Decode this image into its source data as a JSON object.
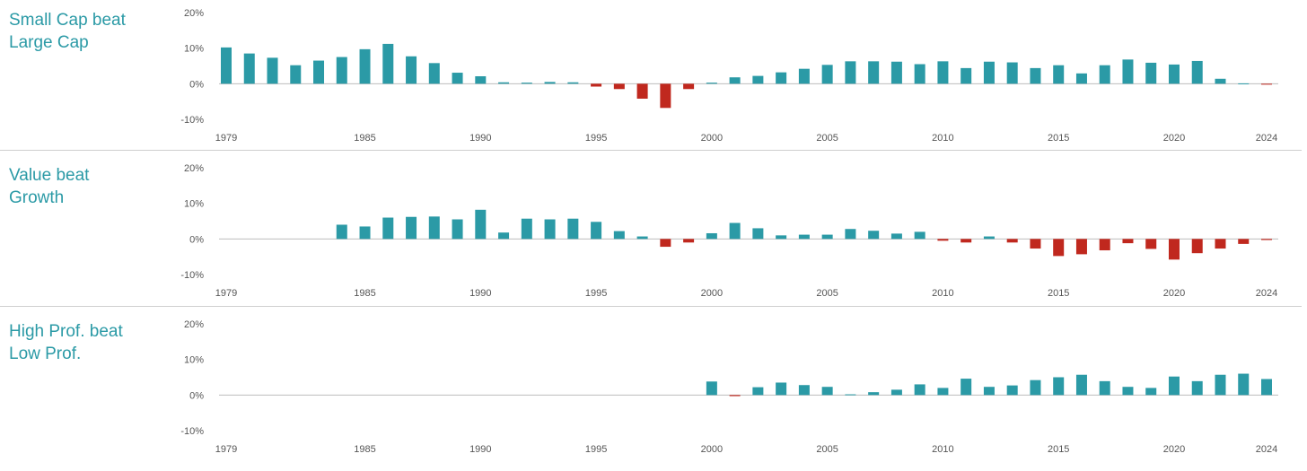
{
  "colors": {
    "positive": "#2b9aa6",
    "negative": "#c0281e",
    "title": "#2b9aa6",
    "zero_line": "#bdbdbd",
    "tick_text": "#555555"
  },
  "chart_data": [
    {
      "type": "bar",
      "title_lines": [
        "Small Cap beat",
        "Large Cap"
      ],
      "ylim": [
        -10,
        20
      ],
      "yticks": [
        "20%",
        "10%",
        "0%",
        "-10%"
      ],
      "xtick_labels": [
        "1979",
        "1985",
        "1990",
        "1995",
        "2000",
        "2005",
        "2010",
        "2015",
        "2020",
        "2024"
      ],
      "categories": [
        1979,
        1980,
        1981,
        1982,
        1983,
        1984,
        1985,
        1986,
        1987,
        1988,
        1989,
        1990,
        1991,
        1992,
        1993,
        1994,
        1995,
        1996,
        1997,
        1998,
        1999,
        2000,
        2001,
        2002,
        2003,
        2004,
        2005,
        2006,
        2007,
        2008,
        2009,
        2010,
        2011,
        2012,
        2013,
        2014,
        2015,
        2016,
        2017,
        2018,
        2019,
        2020,
        2021,
        2022,
        2023,
        2024
      ],
      "values": [
        10.2,
        8.5,
        7.3,
        5.2,
        6.5,
        7.5,
        9.7,
        11.2,
        7.7,
        5.8,
        3.1,
        2.1,
        0.4,
        0.3,
        0.5,
        0.4,
        -0.8,
        -1.5,
        -4.2,
        -6.8,
        -1.5,
        0.3,
        1.8,
        2.2,
        3.2,
        4.2,
        5.3,
        6.3,
        6.3,
        6.2,
        5.5,
        6.3,
        4.4,
        6.2,
        6.0,
        4.4,
        5.2,
        2.9,
        5.2,
        6.8,
        5.9,
        5.4,
        6.4,
        1.4,
        0.1,
        -0.2
      ]
    },
    {
      "type": "bar",
      "title_lines": [
        "Value beat",
        "Growth"
      ],
      "ylim": [
        -10,
        20
      ],
      "yticks": [
        "20%",
        "10%",
        "0%",
        "-10%"
      ],
      "xtick_labels": [
        "1979",
        "1985",
        "1990",
        "1995",
        "2000",
        "2005",
        "2010",
        "2015",
        "2020",
        "2024"
      ],
      "categories": [
        1979,
        1980,
        1981,
        1982,
        1983,
        1984,
        1985,
        1986,
        1987,
        1988,
        1989,
        1990,
        1991,
        1992,
        1993,
        1994,
        1995,
        1996,
        1997,
        1998,
        1999,
        2000,
        2001,
        2002,
        2003,
        2004,
        2005,
        2006,
        2007,
        2008,
        2009,
        2010,
        2011,
        2012,
        2013,
        2014,
        2015,
        2016,
        2017,
        2018,
        2019,
        2020,
        2021,
        2022,
        2023,
        2024
      ],
      "values": [
        null,
        null,
        null,
        null,
        null,
        4.0,
        3.5,
        6.0,
        6.2,
        6.3,
        5.5,
        8.2,
        1.8,
        5.7,
        5.5,
        5.7,
        4.8,
        2.2,
        0.7,
        -2.2,
        -1.0,
        1.6,
        4.5,
        3.0,
        1.0,
        1.2,
        1.2,
        2.8,
        2.3,
        1.5,
        2.0,
        -0.5,
        -1.0,
        0.7,
        -1.0,
        -2.7,
        -4.8,
        -4.3,
        -3.2,
        -1.2,
        -2.8,
        -5.8,
        -4.0,
        -2.7,
        -1.4,
        -0.3
      ]
    },
    {
      "type": "bar",
      "title_lines": [
        "High Prof. beat",
        "Low Prof."
      ],
      "ylim": [
        -10,
        20
      ],
      "yticks": [
        "20%",
        "10%",
        "0%",
        "-10%"
      ],
      "xtick_labels": [
        "1979",
        "1985",
        "1990",
        "1995",
        "2000",
        "2005",
        "2010",
        "2015",
        "2020",
        "2024"
      ],
      "categories": [
        1979,
        1980,
        1981,
        1982,
        1983,
        1984,
        1985,
        1986,
        1987,
        1988,
        1989,
        1990,
        1991,
        1992,
        1993,
        1994,
        1995,
        1996,
        1997,
        1998,
        1999,
        2000,
        2001,
        2002,
        2003,
        2004,
        2005,
        2006,
        2007,
        2008,
        2009,
        2010,
        2011,
        2012,
        2013,
        2014,
        2015,
        2016,
        2017,
        2018,
        2019,
        2020,
        2021,
        2022,
        2023,
        2024
      ],
      "values": [
        null,
        null,
        null,
        null,
        null,
        null,
        null,
        null,
        null,
        null,
        null,
        null,
        null,
        null,
        null,
        null,
        null,
        null,
        null,
        null,
        null,
        3.8,
        -0.3,
        2.2,
        3.5,
        2.8,
        2.3,
        0.2,
        0.8,
        1.5,
        3.0,
        2.0,
        4.6,
        2.3,
        2.7,
        4.2,
        5.0,
        5.7,
        3.9,
        2.3,
        2.0,
        5.2,
        3.9,
        5.7,
        6.0,
        4.5
      ]
    }
  ]
}
